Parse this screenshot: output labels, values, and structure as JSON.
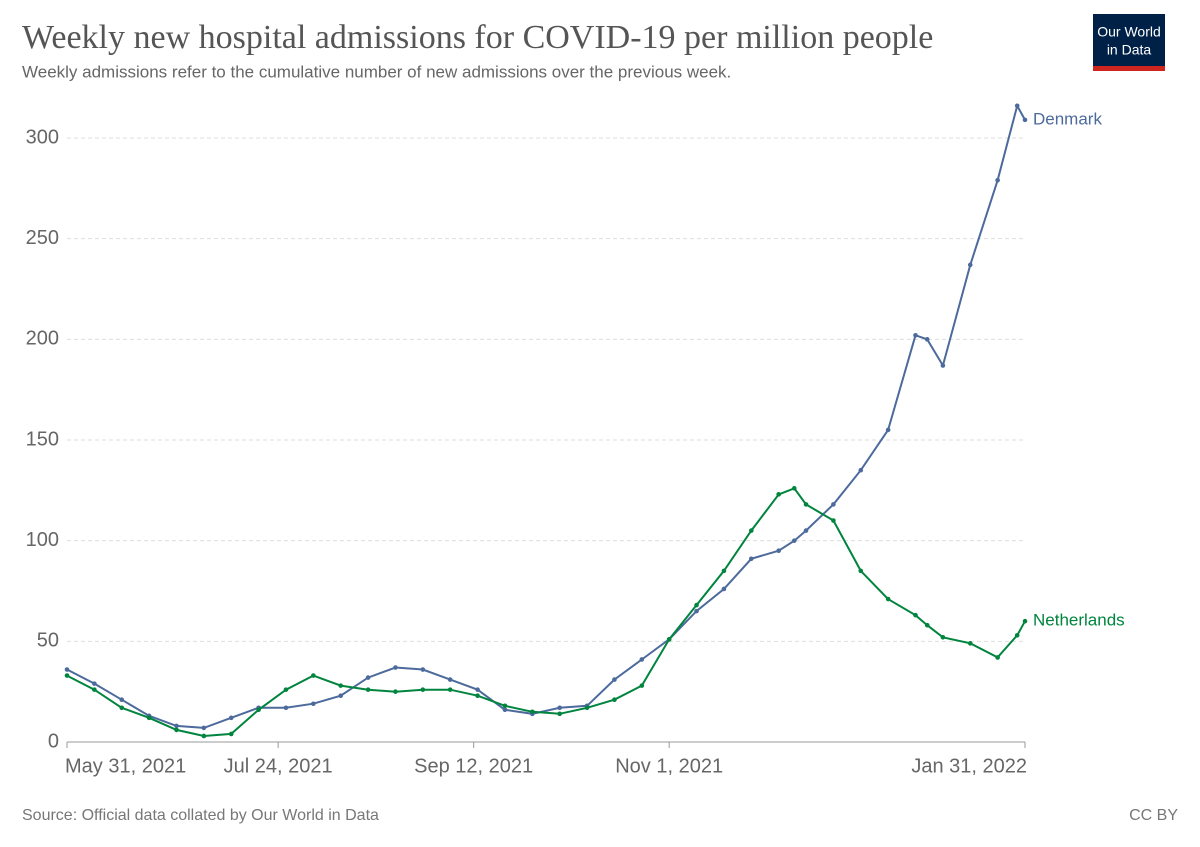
{
  "chart_data": {
    "type": "line",
    "title": "Weekly new hospital admissions for COVID-19 per million people",
    "subtitle": "Weekly admissions refer to the cumulative number of new admissions over the previous week.",
    "source": "Source: Official data collated by Our World in Data",
    "license": "CC BY",
    "logo": [
      "Our World",
      "in Data"
    ],
    "x": [
      "2021-05-31",
      "2021-06-07",
      "2021-06-14",
      "2021-06-21",
      "2021-06-28",
      "2021-07-05",
      "2021-07-12",
      "2021-07-19",
      "2021-07-26",
      "2021-08-02",
      "2021-08-09",
      "2021-08-16",
      "2021-08-23",
      "2021-08-30",
      "2021-09-06",
      "2021-09-13",
      "2021-09-20",
      "2021-09-27",
      "2021-10-04",
      "2021-10-11",
      "2021-10-18",
      "2021-10-25",
      "2021-11-01",
      "2021-11-08",
      "2021-11-15",
      "2021-11-22",
      "2021-11-29",
      "2021-12-03",
      "2021-12-06",
      "2021-12-13",
      "2021-12-20",
      "2021-12-27",
      "2022-01-03",
      "2022-01-06",
      "2022-01-10",
      "2022-01-17",
      "2022-01-24",
      "2022-01-29",
      "2022-01-31"
    ],
    "series": [
      {
        "name": "Denmark",
        "color": "#4c6a9c",
        "values": [
          36,
          29,
          21,
          13,
          8,
          7,
          12,
          17,
          17,
          19,
          23,
          32,
          37,
          36,
          31,
          26,
          16,
          14,
          17,
          18,
          31,
          41,
          51,
          65,
          76,
          91,
          95,
          100,
          105,
          118,
          135,
          155,
          202,
          200,
          187,
          237,
          279,
          316,
          309
        ]
      },
      {
        "name": "Netherlands",
        "color": "#00843e",
        "values": [
          33,
          26,
          17,
          12,
          6,
          3,
          4,
          16,
          26,
          33,
          28,
          26,
          25,
          26,
          26,
          23,
          18,
          15,
          14,
          17,
          21,
          28,
          51,
          68,
          85,
          105,
          123,
          126,
          118,
          110,
          85,
          71,
          63,
          58,
          52,
          49,
          42,
          53,
          60
        ]
      }
    ],
    "xlim": [
      "2021-05-31",
      "2022-01-31"
    ],
    "xticks": [
      {
        "value": "2021-05-31",
        "label": "May 31, 2021"
      },
      {
        "value": "2021-07-24",
        "label": "Jul 24, 2021"
      },
      {
        "value": "2021-09-12",
        "label": "Sep 12, 2021"
      },
      {
        "value": "2021-11-01",
        "label": "Nov 1, 2021"
      },
      {
        "value": "2022-01-31",
        "label": "Jan 31, 2022"
      }
    ],
    "ylim": [
      0,
      300
    ],
    "yticks": [
      0,
      50,
      100,
      150,
      200,
      250,
      300
    ],
    "grid": true
  }
}
